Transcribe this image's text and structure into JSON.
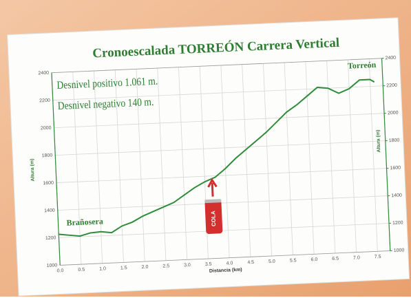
{
  "chart_data": {
    "type": "line",
    "title": "Cronoescalada TORREÓN Carrera Vertical",
    "annotations": [
      "Desnivel positivo 1.061 m.",
      "Desnivel negativo 140 m.",
      "Brañosera",
      "Torreón",
      "COLA"
    ],
    "xlabel": "Distancia (km)",
    "ylabel": "Altura (m)",
    "y2label": "Altura (m)",
    "x": [
      0,
      0.25,
      0.5,
      0.75,
      1.0,
      1.25,
      1.5,
      1.75,
      2.0,
      2.25,
      2.5,
      2.75,
      3.0,
      3.25,
      3.5,
      3.75,
      4.0,
      4.25,
      4.5,
      4.75,
      5.0,
      5.25,
      5.5,
      5.75,
      6.0,
      6.25,
      6.5,
      6.75,
      7.0,
      7.25,
      7.5,
      7.6
    ],
    "series": [
      {
        "name": "Altura",
        "color": "#2e8b3a",
        "values": [
          1225,
          1215,
          1205,
          1225,
          1230,
          1220,
          1265,
          1290,
          1330,
          1360,
          1390,
          1420,
          1470,
          1520,
          1560,
          1590,
          1650,
          1720,
          1780,
          1840,
          1900,
          1970,
          2040,
          2090,
          2150,
          2210,
          2200,
          2160,
          2190,
          2250,
          2250,
          2230
        ]
      }
    ],
    "xlim": [
      0,
      7.8
    ],
    "xticks": [
      {
        "value": 0,
        "label": "0.0"
      },
      0.5,
      {
        "value": 1,
        "label": "1.0"
      },
      1.5,
      {
        "value": 2,
        "label": "2.0"
      },
      2.5,
      {
        "value": 3,
        "label": "3.0"
      },
      3.5,
      {
        "value": 4,
        "label": "4.0"
      },
      4.5,
      {
        "value": 5,
        "label": "5.0"
      },
      5.5,
      {
        "value": 6,
        "label": "6.0"
      },
      6.5,
      {
        "value": 7,
        "label": "7.0"
      },
      7.5
    ],
    "ylim": [
      1000,
      2400
    ],
    "yticks": [
      1000,
      1200,
      1400,
      1600,
      1800,
      2000,
      2200,
      2400
    ],
    "y2lim": [
      1000,
      2400
    ],
    "y2ticks": [
      1000,
      1200,
      1400,
      1600,
      1800,
      2000,
      2200,
      2400
    ],
    "grid": true
  }
}
